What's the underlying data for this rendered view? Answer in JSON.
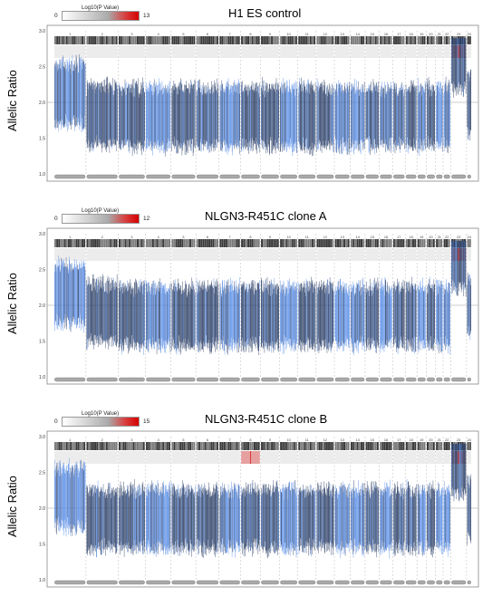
{
  "y_axis_label": "Allelic Ratio",
  "colors": {
    "dark_points": "#2b3f66",
    "light_points": "#5a8ee6",
    "bands": "#3a3a3a",
    "red": "#d83a3a",
    "frame": "#888888"
  },
  "chart_data": [
    {
      "type": "scatter",
      "title": "H1 ES control",
      "legend": {
        "title": "Log10(P Value)",
        "min": "0",
        "max": "13"
      },
      "ylim": [
        1.0,
        3.0
      ],
      "y_ticks": [
        "1.0",
        "1.5",
        "2.0",
        "2.5",
        "3.0"
      ],
      "chromosomes": [
        "1",
        "2",
        "3",
        "4",
        "5",
        "6",
        "7",
        "8",
        "9",
        "10",
        "11",
        "12",
        "13",
        "14",
        "15",
        "16",
        "17",
        "18",
        "19",
        "20",
        "21",
        "22",
        "23",
        "24"
      ],
      "baseline": 2.0,
      "chr_profile": [
        2.12,
        1.82,
        1.8,
        1.8,
        1.8,
        1.8,
        1.8,
        1.8,
        1.8,
        1.8,
        1.8,
        1.8,
        1.8,
        1.8,
        1.8,
        1.8,
        1.8,
        1.8,
        1.8,
        1.8,
        1.8,
        1.8,
        2.6,
        2.0
      ],
      "red_chromosomes": [
        "23"
      ]
    },
    {
      "type": "scatter",
      "title": "NLGN3-R451C clone A",
      "legend": {
        "title": "Log10(P Value)",
        "min": "0",
        "max": "12"
      },
      "ylim": [
        1.0,
        3.0
      ],
      "y_ticks": [
        "1.0",
        "1.5",
        "2.0",
        "2.5",
        "3.0"
      ],
      "chromosomes": [
        "1",
        "2",
        "3",
        "4",
        "5",
        "6",
        "7",
        "8",
        "9",
        "10",
        "11",
        "12",
        "13",
        "14",
        "15",
        "16",
        "17",
        "18",
        "19",
        "20",
        "21",
        "22",
        "23",
        "24"
      ],
      "baseline": 2.0,
      "chr_profile": [
        2.15,
        1.9,
        1.85,
        1.85,
        1.85,
        1.85,
        1.85,
        1.85,
        1.85,
        1.85,
        1.85,
        1.85,
        1.85,
        1.85,
        1.85,
        1.85,
        1.85,
        1.85,
        1.85,
        1.85,
        1.85,
        1.85,
        2.65,
        2.0
      ],
      "red_chromosomes": [
        "23"
      ]
    },
    {
      "type": "scatter",
      "title": "NLGN3-R451C clone B",
      "legend": {
        "title": "Log10(P Value)",
        "min": "0",
        "max": "15"
      },
      "ylim": [
        1.0,
        3.0
      ],
      "y_ticks": [
        "1.0",
        "1.5",
        "2.0",
        "2.5",
        "3.0"
      ],
      "chromosomes": [
        "1",
        "2",
        "3",
        "4",
        "5",
        "6",
        "7",
        "8",
        "9",
        "10",
        "11",
        "12",
        "13",
        "14",
        "15",
        "16",
        "17",
        "18",
        "19",
        "20",
        "21",
        "22",
        "23",
        "24"
      ],
      "baseline": 2.0,
      "chr_profile": [
        2.15,
        1.85,
        1.85,
        1.85,
        1.85,
        1.85,
        1.85,
        1.85,
        1.85,
        1.85,
        1.85,
        1.85,
        1.85,
        1.85,
        1.85,
        1.85,
        1.85,
        1.85,
        1.85,
        1.85,
        1.85,
        1.85,
        2.6,
        2.0
      ],
      "red_chromosomes": [
        "8",
        "23"
      ]
    }
  ]
}
